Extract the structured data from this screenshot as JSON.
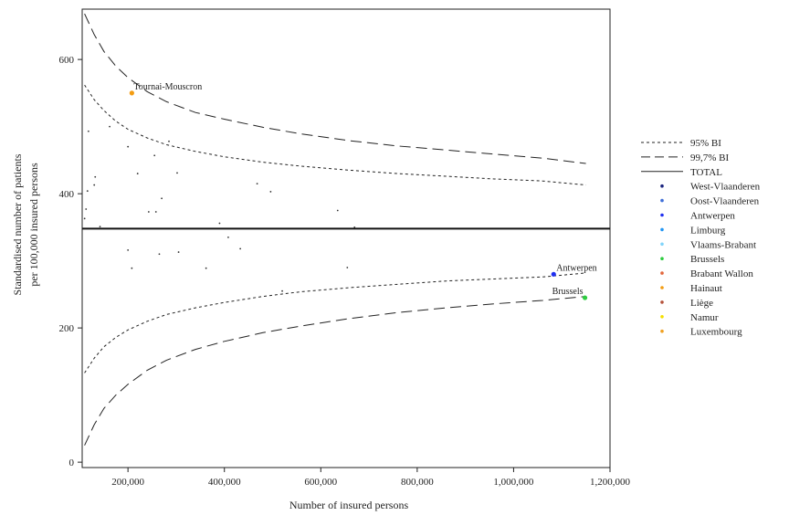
{
  "chart_data": {
    "type": "scatter",
    "title": "",
    "xlabel": "Number of insured persons",
    "ylabel_lines": [
      "Standardised number of patients",
      "per 100,000 insured persons"
    ],
    "xlim": [
      105000,
      1200000
    ],
    "ylim": [
      -8,
      675
    ],
    "xticks": [
      200000,
      400000,
      600000,
      800000,
      1000000,
      1200000
    ],
    "xtick_labels": [
      "200,000",
      "400,000",
      "600,000",
      "800,000",
      "1,000,000",
      "1,200,000"
    ],
    "yticks": [
      0,
      200,
      400,
      600
    ],
    "ytick_labels": [
      "0",
      "200",
      "400",
      "600"
    ],
    "grid": false,
    "legend_position": "right",
    "total": 348,
    "limit_x": [
      110000,
      130000,
      150000,
      175000,
      200000,
      240000,
      280000,
      340000,
      400000,
      480000,
      560000,
      660000,
      760000,
      860000,
      960000,
      1060000,
      1150000
    ],
    "ci95_upper": [
      562,
      540,
      524,
      508,
      496,
      483,
      473,
      463,
      455,
      447,
      441,
      435,
      430,
      426,
      422,
      419,
      413
    ],
    "ci95_lower": [
      133,
      155,
      172,
      186,
      197,
      210,
      220,
      230,
      238,
      247,
      254,
      260,
      265,
      270,
      273,
      276,
      282
    ],
    "ci997_upper": [
      668,
      637,
      612,
      590,
      573,
      552,
      537,
      521,
      511,
      499,
      489,
      479,
      471,
      465,
      459,
      453,
      445
    ],
    "ci997_lower": [
      25,
      56,
      80,
      100,
      116,
      137,
      152,
      168,
      180,
      193,
      203,
      214,
      223,
      230,
      236,
      241,
      247
    ],
    "legend": [
      {
        "label": "95% BI",
        "kind": "dotted"
      },
      {
        "label": "99,7% BI",
        "kind": "dashed"
      },
      {
        "label": "TOTAL",
        "kind": "solid"
      },
      {
        "label": "West-Vlaanderen",
        "kind": "dot",
        "color": "#1a237e"
      },
      {
        "label": "Oost-Vlaanderen",
        "kind": "dot",
        "color": "#3f6fd8"
      },
      {
        "label": "Antwerpen",
        "kind": "dot",
        "color": "#1f2ff0"
      },
      {
        "label": "Limburg",
        "kind": "dot",
        "color": "#2196f3"
      },
      {
        "label": "Vlaams-Brabant",
        "kind": "dot",
        "color": "#81d4fa"
      },
      {
        "label": "Brussels",
        "kind": "dot",
        "color": "#2ecc40"
      },
      {
        "label": "Brabant Wallon",
        "kind": "dot",
        "color": "#e2673c"
      },
      {
        "label": "Hainaut",
        "kind": "dot",
        "color": "#f39c12"
      },
      {
        "label": "Liège",
        "kind": "dot",
        "color": "#b5523b"
      },
      {
        "label": "Namur",
        "kind": "dot",
        "color": "#f5e000"
      },
      {
        "label": "Luxembourg",
        "kind": "dot",
        "color": "#f0a020"
      }
    ],
    "points": [
      {
        "x": 110000,
        "y": 363
      },
      {
        "x": 113000,
        "y": 377
      },
      {
        "x": 116000,
        "y": 404
      },
      {
        "x": 118000,
        "y": 493
      },
      {
        "x": 130000,
        "y": 413
      },
      {
        "x": 132000,
        "y": 425
      },
      {
        "x": 142000,
        "y": 351
      },
      {
        "x": 162000,
        "y": 500
      },
      {
        "x": 200000,
        "y": 470
      },
      {
        "x": 200000,
        "y": 316
      },
      {
        "x": 208000,
        "y": 289
      },
      {
        "x": 220000,
        "y": 430
      },
      {
        "x": 243000,
        "y": 373
      },
      {
        "x": 255000,
        "y": 457
      },
      {
        "x": 258000,
        "y": 373
      },
      {
        "x": 265000,
        "y": 310
      },
      {
        "x": 270000,
        "y": 393
      },
      {
        "x": 285000,
        "y": 478
      },
      {
        "x": 302000,
        "y": 431
      },
      {
        "x": 305000,
        "y": 313
      },
      {
        "x": 362000,
        "y": 289
      },
      {
        "x": 390000,
        "y": 356
      },
      {
        "x": 408000,
        "y": 335
      },
      {
        "x": 433000,
        "y": 318
      },
      {
        "x": 468000,
        "y": 415
      },
      {
        "x": 496000,
        "y": 403
      },
      {
        "x": 520000,
        "y": 255
      },
      {
        "x": 635000,
        "y": 375
      },
      {
        "x": 655000,
        "y": 290
      },
      {
        "x": 670000,
        "y": 350
      },
      {
        "x": 208000,
        "y": 550,
        "label": "Tournai-Mouscron",
        "color": "#f39c12",
        "highlight": true
      },
      {
        "x": 1083000,
        "y": 280,
        "label": "Antwerpen",
        "color": "#1f2ff0",
        "highlight": true
      },
      {
        "x": 1148000,
        "y": 245,
        "label": "Brussels",
        "color": "#2ecc40",
        "highlight": true
      }
    ]
  }
}
